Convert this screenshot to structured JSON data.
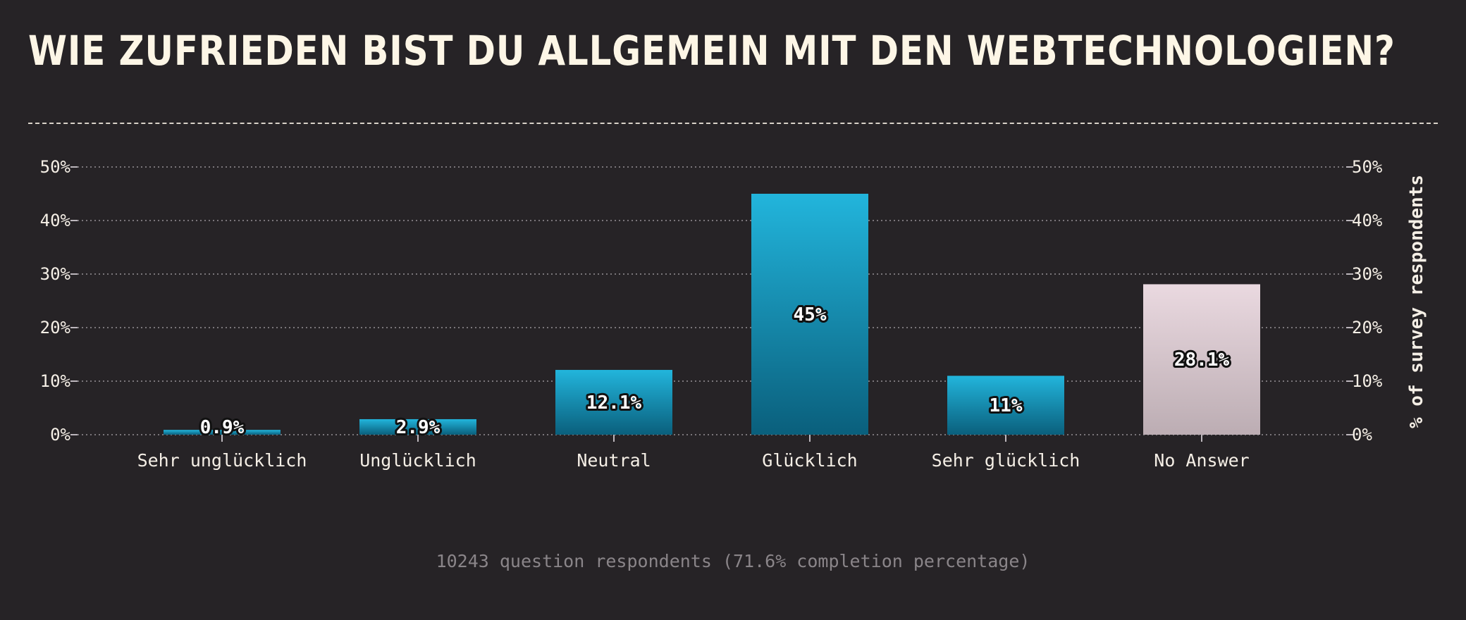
{
  "title": "WIE ZUFRIEDEN BIST DU ALLGEMEIN MIT DEN WEBTECHNOLOGIEN?",
  "footer": "10243 question respondents (71.6% completion percentage)",
  "colors": {
    "background": "#262326",
    "bar_top": "#22b5dc",
    "bar_bottom": "#0a5f7c",
    "na_top": "#ead9e0",
    "na_bottom": "#bcadb3",
    "grid": "#7a767a",
    "text": "#f5efe6"
  },
  "chart_data": {
    "type": "bar",
    "title": "WIE ZUFRIEDEN BIST DU ALLGEMEIN MIT DEN WEBTECHNOLOGIEN?",
    "xlabel": "",
    "ylabel": "% of survey respondents",
    "ylim": [
      0,
      50
    ],
    "yticks": [
      "0%",
      "10%",
      "20%",
      "30%",
      "40%",
      "50%"
    ],
    "grid": true,
    "categories": [
      "Sehr unglücklich",
      "Unglücklich",
      "Neutral",
      "Glücklich",
      "Sehr glücklich",
      "No Answer"
    ],
    "values": [
      0.9,
      2.9,
      12.1,
      45,
      11,
      28.1
    ],
    "labels": [
      "0.9%",
      "2.9%",
      "12.1%",
      "45%",
      "11%",
      "28.1%"
    ],
    "highlight": [
      "normal",
      "normal",
      "normal",
      "normal",
      "normal",
      "na"
    ]
  }
}
